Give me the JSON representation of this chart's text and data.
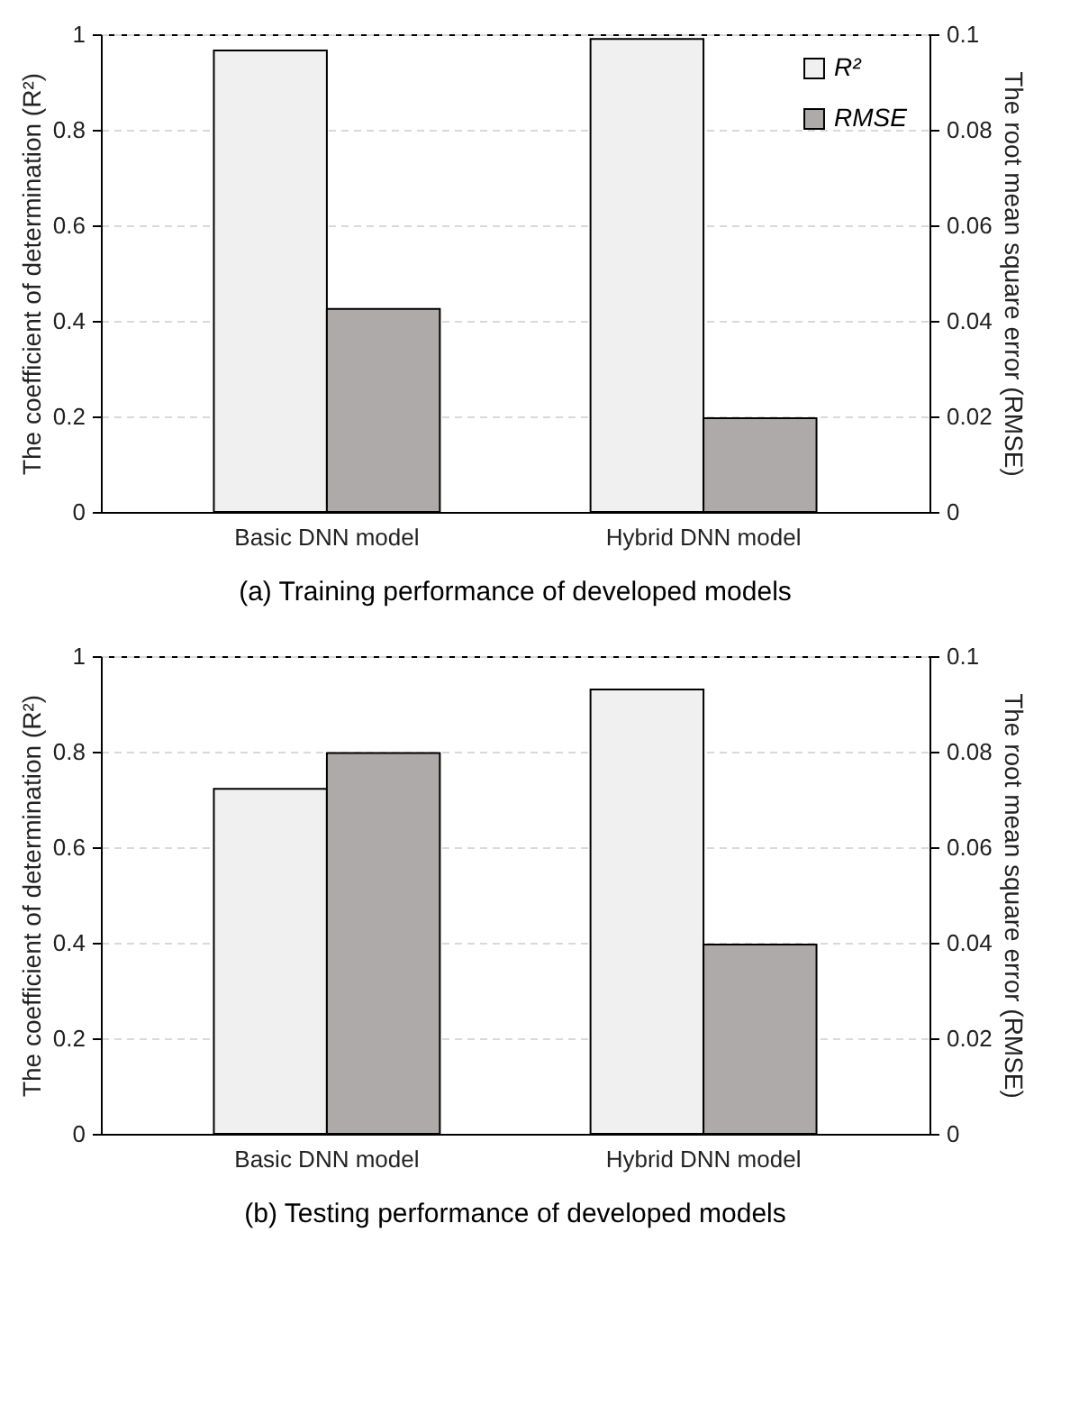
{
  "chart_data": [
    {
      "type": "bar",
      "title": "(a) Training performance of developed models",
      "ylabel": "The coefficient of determination (R²)",
      "y2label": "The root mean square error (RMSE)",
      "categories": [
        "Basic DNN model",
        "Hybrid DNN model"
      ],
      "series": [
        {
          "name": "R²",
          "color": "#f0f0f0",
          "values": [
            0.966,
            0.99
          ]
        },
        {
          "name": "RMSE",
          "color": "#aeaaaa",
          "values": [
            0.0425,
            0.0196
          ],
          "axis": "y2"
        }
      ],
      "ylim": [
        0,
        1
      ],
      "yticks": [
        0,
        0.2,
        0.4,
        0.6,
        0.8,
        1
      ],
      "y2lim": [
        0,
        0.1
      ],
      "y2ticks": [
        0,
        0.02,
        0.04,
        0.06,
        0.08,
        0.1
      ],
      "grid": "y",
      "legend": "top right"
    },
    {
      "type": "bar",
      "title": "(b) Testing performance of developed models",
      "ylabel": "The coefficient of determination (R²)",
      "y2label": "The root mean square error (RMSE)",
      "categories": [
        "Basic DNN model",
        "Hybrid DNN model"
      ],
      "series": [
        {
          "name": "R²",
          "color": "#f0f0f0",
          "values": [
            0.722,
            0.93
          ]
        },
        {
          "name": "RMSE",
          "color": "#aeaaaa",
          "values": [
            0.0797,
            0.0396
          ],
          "axis": "y2"
        }
      ],
      "ylim": [
        0,
        1
      ],
      "yticks": [
        0,
        0.2,
        0.4,
        0.6,
        0.8,
        1
      ],
      "y2lim": [
        0,
        0.1
      ],
      "y2ticks": [
        0,
        0.02,
        0.04,
        0.06,
        0.08,
        0.1
      ],
      "grid": "y",
      "legend": "top right"
    }
  ]
}
